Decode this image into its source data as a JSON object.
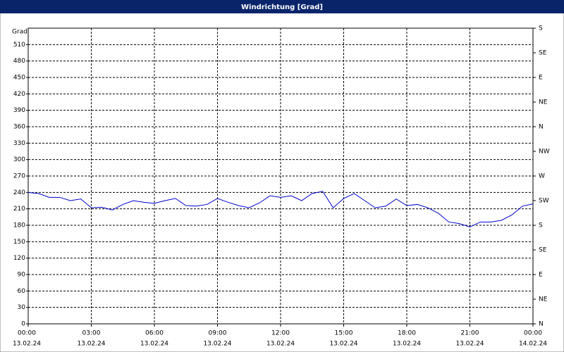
{
  "chart_data": {
    "type": "line",
    "title": "Windrichtung [Grad]",
    "ylabel": "Grad",
    "x": [
      0,
      0.5,
      1,
      1.5,
      2,
      2.5,
      3,
      3.5,
      4,
      4.5,
      5,
      5.5,
      6,
      6.5,
      7,
      7.5,
      8,
      8.5,
      9,
      9.5,
      10,
      10.5,
      11,
      11.5,
      12,
      12.5,
      13,
      13.5,
      14,
      14.5,
      15,
      15.5,
      16,
      16.5,
      17,
      17.5,
      18,
      18.5,
      19,
      19.5,
      20,
      20.5,
      21,
      21.5,
      22,
      22.5,
      23,
      23.5,
      24
    ],
    "series": [
      {
        "color": "#0000cc",
        "values": [
          240,
          238,
          231,
          231,
          225,
          228,
          212,
          213,
          208,
          218,
          225,
          222,
          220,
          225,
          229,
          216,
          215,
          218,
          229,
          222,
          216,
          212,
          221,
          234,
          231,
          234,
          225,
          238,
          242,
          212,
          229,
          238,
          225,
          212,
          215,
          228,
          216,
          218,
          212,
          202,
          186,
          183,
          177,
          186,
          186,
          189,
          199,
          215,
          219
        ]
      }
    ],
    "xlim": [
      0,
      24
    ],
    "xticks": [
      {
        "value": 0,
        "label": "00:00",
        "date": "13.02.24"
      },
      {
        "value": 3,
        "label": "03:00",
        "date": "13.02.24"
      },
      {
        "value": 6,
        "label": "06:00",
        "date": "13.02.24"
      },
      {
        "value": 9,
        "label": "09:00",
        "date": "13.02.24"
      },
      {
        "value": 12,
        "label": "12:00",
        "date": "13.02.24"
      },
      {
        "value": 15,
        "label": "15:00",
        "date": "13.02.24"
      },
      {
        "value": 18,
        "label": "18:00",
        "date": "13.02.24"
      },
      {
        "value": 21,
        "label": "21:00",
        "date": "13.02.24"
      },
      {
        "value": 24,
        "label": "00:00",
        "date": "14.02.24"
      }
    ],
    "ylim": [
      0,
      540
    ],
    "yticks": [
      0,
      30,
      60,
      90,
      120,
      150,
      180,
      210,
      240,
      270,
      300,
      330,
      360,
      390,
      420,
      450,
      480,
      510
    ],
    "y2lim": [
      0,
      540
    ],
    "y2ticks": [
      {
        "value": 0,
        "label": "N"
      },
      {
        "value": 45,
        "label": "NE"
      },
      {
        "value": 90,
        "label": "E"
      },
      {
        "value": 135,
        "label": "SE"
      },
      {
        "value": 180,
        "label": "S"
      },
      {
        "value": 225,
        "label": "SW"
      },
      {
        "value": 270,
        "label": "W"
      },
      {
        "value": 315,
        "label": "NW"
      },
      {
        "value": 360,
        "label": "N"
      },
      {
        "value": 405,
        "label": "NE"
      },
      {
        "value": 450,
        "label": "E"
      },
      {
        "value": 495,
        "label": "SE"
      },
      {
        "value": 540,
        "label": "S"
      }
    ],
    "grid": true
  }
}
